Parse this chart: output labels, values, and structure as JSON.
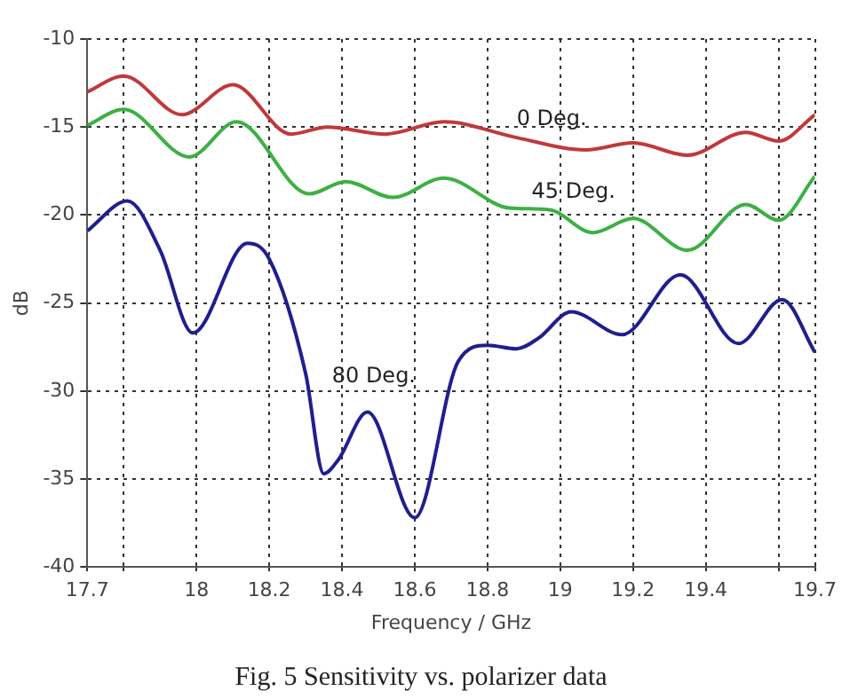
{
  "chart_data": {
    "type": "line",
    "xlabel": "Frequency / GHz",
    "ylabel": "dB",
    "annotations": [
      "Fig. 5 Sensitivity vs. polarizer data"
    ],
    "xlim": [
      17.7,
      19.7
    ],
    "xticks": [
      17.7,
      {
        "value": 17.8,
        "label": null
      },
      18,
      18.2,
      18.4,
      18.6,
      18.8,
      19,
      19.2,
      19.4,
      {
        "value": 19.6,
        "label": null
      },
      19.7
    ],
    "ylim": [
      -40,
      -10
    ],
    "yticks": [
      -40,
      -35,
      -30,
      -25,
      -20,
      -15,
      -10
    ],
    "grid": true,
    "legend": false,
    "marker": "none",
    "line_style": "solid",
    "series": [
      {
        "name": "0 Deg.",
        "color": "#c0393b",
        "x": [
          17.7,
          17.8,
          17.96,
          18.1,
          18.26,
          18.36,
          18.52,
          18.68,
          18.88,
          19.07,
          19.2,
          19.35,
          19.51,
          19.6,
          19.7
        ],
        "values": [
          -13.0,
          -12.1,
          -14.3,
          -12.6,
          -15.4,
          -15.0,
          -15.4,
          -14.7,
          -15.6,
          -16.3,
          -15.9,
          -16.6,
          -15.3,
          -15.8,
          -14.3
        ]
      },
      {
        "name": "45 Deg.",
        "color": "#3cb043",
        "x": [
          17.7,
          17.8,
          17.98,
          18.11,
          18.31,
          18.41,
          18.54,
          18.68,
          18.86,
          18.97,
          19.09,
          19.2,
          19.35,
          19.51,
          19.6,
          19.7
        ],
        "values": [
          -14.9,
          -14.0,
          -16.7,
          -14.7,
          -18.8,
          -18.1,
          -19.0,
          -17.9,
          -19.6,
          -19.7,
          -21.0,
          -20.2,
          -22.0,
          -19.4,
          -20.3,
          -17.8
        ]
      },
      {
        "name": "80 Deg.",
        "color": "#1f1f8f",
        "x": [
          17.7,
          17.81,
          17.9,
          17.99,
          18.14,
          18.2,
          18.3,
          18.35,
          18.39,
          18.47,
          18.6,
          18.72,
          18.8,
          18.88,
          18.94,
          19.03,
          19.17,
          19.33,
          19.49,
          19.61,
          19.7
        ],
        "values": [
          -20.9,
          -19.2,
          -22.0,
          -26.7,
          -21.6,
          -22.5,
          -29.0,
          -34.7,
          -33.9,
          -31.2,
          -37.2,
          -28.3,
          -27.4,
          -27.6,
          -27.0,
          -25.5,
          -26.8,
          -23.4,
          -27.3,
          -24.8,
          -27.8
        ]
      }
    ]
  }
}
